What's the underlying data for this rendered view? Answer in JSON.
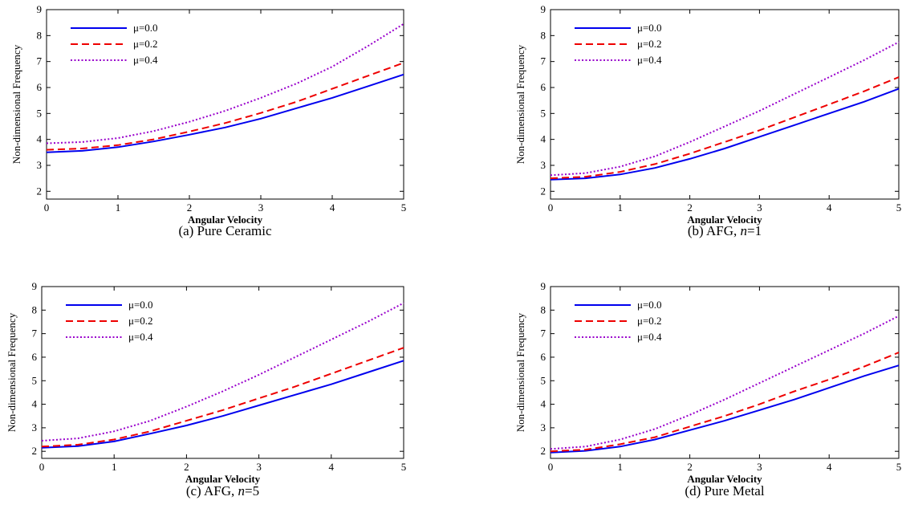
{
  "chart_data": [
    {
      "type": "line",
      "caption": "(a) Pure Ceramic",
      "caption_parts": [
        {
          "text": "(a) Pure Ceramic",
          "italic": false
        }
      ],
      "xlabel": "Angular Velocity",
      "ylabel": "Non-dimensional Frequency",
      "xlim": [
        0,
        5
      ],
      "ylim": [
        1.7,
        9
      ],
      "xticks": [
        0,
        1,
        2,
        3,
        4,
        5
      ],
      "yticks": [
        2,
        3,
        4,
        5,
        6,
        7,
        8,
        9
      ],
      "legend_position": "top-left",
      "grid": false,
      "x": [
        0,
        0.5,
        1,
        1.5,
        2,
        2.5,
        3,
        3.5,
        4,
        4.5,
        5
      ],
      "series": [
        {
          "name": "μ=0.0",
          "color": "#0000ee",
          "style": "solid",
          "values": [
            3.5,
            3.56,
            3.7,
            3.92,
            4.18,
            4.46,
            4.8,
            5.2,
            5.6,
            6.05,
            6.5
          ]
        },
        {
          "name": "μ=0.2",
          "color": "#ee0000",
          "style": "dashed",
          "values": [
            3.6,
            3.65,
            3.78,
            4.0,
            4.3,
            4.63,
            5.02,
            5.45,
            5.95,
            6.45,
            6.95
          ]
        },
        {
          "name": "μ=0.4",
          "color": "#9900cc",
          "style": "dotted",
          "values": [
            3.85,
            3.9,
            4.05,
            4.32,
            4.68,
            5.1,
            5.6,
            6.15,
            6.8,
            7.6,
            8.45
          ]
        }
      ]
    },
    {
      "type": "line",
      "caption": "(b) AFG, n=1",
      "caption_parts": [
        {
          "text": "(b) AFG, ",
          "italic": false
        },
        {
          "text": "n",
          "italic": true
        },
        {
          "text": "=1",
          "italic": false
        }
      ],
      "xlabel": "Angular Velocity",
      "ylabel": "Non-dimensional Frequency",
      "xlim": [
        0,
        5
      ],
      "ylim": [
        1.7,
        9
      ],
      "xticks": [
        0,
        1,
        2,
        3,
        4,
        5
      ],
      "yticks": [
        2,
        3,
        4,
        5,
        6,
        7,
        8,
        9
      ],
      "legend_position": "top-left",
      "grid": false,
      "x": [
        0,
        0.5,
        1,
        1.5,
        2,
        2.5,
        3,
        3.5,
        4,
        4.5,
        5
      ],
      "series": [
        {
          "name": "μ=0.0",
          "color": "#0000ee",
          "style": "solid",
          "values": [
            2.45,
            2.5,
            2.65,
            2.9,
            3.25,
            3.65,
            4.1,
            4.55,
            5.0,
            5.45,
            5.95
          ]
        },
        {
          "name": "μ=0.2",
          "color": "#ee0000",
          "style": "dashed",
          "values": [
            2.5,
            2.56,
            2.75,
            3.05,
            3.45,
            3.9,
            4.35,
            4.85,
            5.35,
            5.85,
            6.4
          ]
        },
        {
          "name": "μ=0.4",
          "color": "#9900cc",
          "style": "dotted",
          "values": [
            2.62,
            2.7,
            2.95,
            3.35,
            3.9,
            4.5,
            5.1,
            5.75,
            6.4,
            7.05,
            7.75
          ]
        }
      ]
    },
    {
      "type": "line",
      "caption": "(c) AFG, n=5",
      "caption_parts": [
        {
          "text": "(c) AFG, ",
          "italic": false
        },
        {
          "text": "n",
          "italic": true
        },
        {
          "text": "=5",
          "italic": false
        }
      ],
      "xlabel": "Angular Velocity",
      "ylabel": "Non-dimensional Frequency",
      "xlim": [
        0,
        5
      ],
      "ylim": [
        1.7,
        9
      ],
      "xticks": [
        0,
        1,
        2,
        3,
        4,
        5
      ],
      "yticks": [
        2,
        3,
        4,
        5,
        6,
        7,
        8,
        9
      ],
      "legend_position": "top-left",
      "grid": false,
      "x": [
        0,
        0.5,
        1,
        1.5,
        2,
        2.5,
        3,
        3.5,
        4,
        4.5,
        5
      ],
      "series": [
        {
          "name": "μ=0.0",
          "color": "#0000ee",
          "style": "solid",
          "values": [
            2.15,
            2.22,
            2.42,
            2.75,
            3.1,
            3.5,
            3.95,
            4.4,
            4.85,
            5.35,
            5.85
          ]
        },
        {
          "name": "μ=0.2",
          "color": "#ee0000",
          "style": "dashed",
          "values": [
            2.2,
            2.28,
            2.5,
            2.85,
            3.3,
            3.75,
            4.25,
            4.75,
            5.3,
            5.85,
            6.4
          ]
        },
        {
          "name": "μ=0.4",
          "color": "#9900cc",
          "style": "dotted",
          "values": [
            2.45,
            2.55,
            2.85,
            3.3,
            3.9,
            4.55,
            5.25,
            6.0,
            6.75,
            7.5,
            8.3
          ]
        }
      ]
    },
    {
      "type": "line",
      "caption": "(d) Pure Metal",
      "caption_parts": [
        {
          "text": "(d) Pure Metal",
          "italic": false
        }
      ],
      "xlabel": "Angular Velocity",
      "ylabel": "Non-dimensional Frequency",
      "xlim": [
        0,
        5
      ],
      "ylim": [
        1.7,
        9
      ],
      "xticks": [
        0,
        1,
        2,
        3,
        4,
        5
      ],
      "yticks": [
        2,
        3,
        4,
        5,
        6,
        7,
        8,
        9
      ],
      "legend_position": "top-left",
      "grid": false,
      "x": [
        0,
        0.5,
        1,
        1.5,
        2,
        2.5,
        3,
        3.5,
        4,
        4.5,
        5
      ],
      "series": [
        {
          "name": "μ=0.0",
          "color": "#0000ee",
          "style": "solid",
          "values": [
            1.95,
            2.02,
            2.2,
            2.5,
            2.9,
            3.3,
            3.75,
            4.2,
            4.7,
            5.2,
            5.65
          ]
        },
        {
          "name": "μ=0.2",
          "color": "#ee0000",
          "style": "dashed",
          "values": [
            2.0,
            2.07,
            2.3,
            2.6,
            3.05,
            3.5,
            4.0,
            4.55,
            5.05,
            5.6,
            6.2
          ]
        },
        {
          "name": "μ=0.4",
          "color": "#9900cc",
          "style": "dotted",
          "values": [
            2.1,
            2.2,
            2.5,
            2.95,
            3.55,
            4.2,
            4.9,
            5.6,
            6.3,
            7.0,
            7.75
          ]
        }
      ]
    }
  ]
}
